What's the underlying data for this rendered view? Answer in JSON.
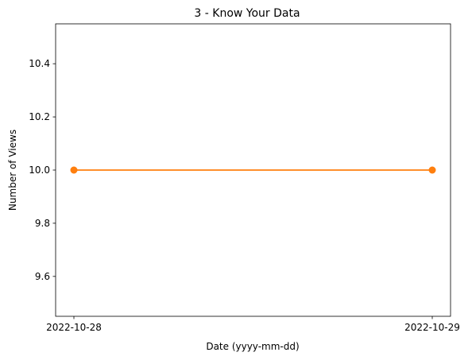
{
  "chart_data": {
    "type": "line",
    "title": "3 - Know Your Data",
    "xlabel": "Date (yyyy-mm-dd)",
    "ylabel": "Number of Views",
    "categories": [
      "2022-10-28",
      "2022-10-29"
    ],
    "series": [
      {
        "values": [
          10.0,
          10.0
        ],
        "color": "#ff7f0e",
        "marker": "circle"
      }
    ],
    "ylim": [
      9.45,
      10.55
    ],
    "yticks": [
      "9.6",
      "9.8",
      "10.0",
      "10.2",
      "10.4"
    ],
    "grid": false,
    "legend": "none"
  }
}
